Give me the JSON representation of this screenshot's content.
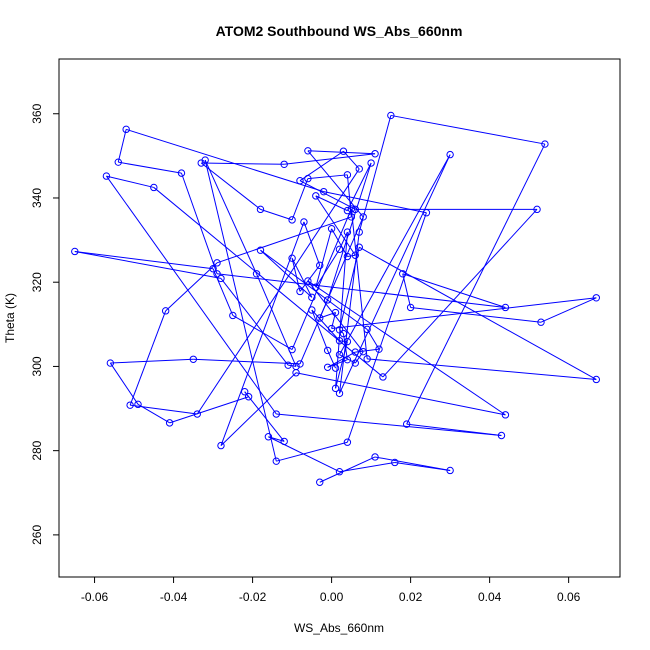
{
  "chart_data": {
    "type": "line",
    "title": "ATOM2 Southbound WS_Abs_660nm",
    "xlabel": "WS_Abs_660nm",
    "ylabel": "Theta (K)",
    "xlim": [
      -0.069,
      0.073
    ],
    "ylim": [
      250,
      373
    ],
    "x_ticks": [
      -0.06,
      -0.04,
      -0.02,
      0.0,
      0.02,
      0.04,
      0.06
    ],
    "x_tick_labels": [
      "-0.06",
      "-0.04",
      "-0.02",
      "0.00",
      "0.02",
      "0.04",
      "0.06"
    ],
    "y_ticks": [
      260,
      280,
      300,
      320,
      340,
      360
    ],
    "y_tick_labels": [
      "260",
      "280",
      "300",
      "320",
      "340",
      "360"
    ],
    "grid": false,
    "legend": "none",
    "marker": "open-circle",
    "series": [
      {
        "color": "#0000ff",
        "x": [
          -0.003,
          0.011,
          0.03,
          0.016,
          0.002,
          -0.016,
          -0.012,
          -0.022,
          -0.021,
          -0.041,
          -0.049,
          -0.056,
          -0.035,
          -0.008,
          0.008,
          -0.006,
          0.011,
          -0.012,
          -0.033,
          -0.018,
          -0.01,
          -0.006,
          0.004,
          0.005,
          -0.029,
          -0.042,
          -0.051,
          -0.034,
          0.007,
          0.003,
          -0.008,
          0.006,
          0.052,
          0.013,
          -0.045,
          -0.057,
          -0.014,
          0.043,
          0.019,
          0.054,
          0.015,
          0.007,
          0.002,
          0.03,
          0.002,
          0.006,
          0.008,
          -0.006,
          0.044,
          -0.009,
          -0.028,
          -0.007,
          -0.003,
          -0.008,
          -0.01,
          -0.005,
          -0.018,
          0.009,
          0.012,
          0.006,
          -0.001,
          0.004,
          0.003,
          0.002,
          0.007,
          0.067,
          0.009,
          0.005,
          -0.01,
          -0.025,
          -0.03,
          -0.065,
          -0.028,
          -0.011,
          -0.009,
          -0.019,
          -0.032,
          -0.014,
          0.004,
          0.024,
          -0.002,
          -0.052,
          -0.054,
          -0.038,
          -0.029,
          0.044,
          0.018,
          0.02,
          0.053,
          0.067,
          0.0,
          0.001,
          -0.003,
          -0.001,
          0.01,
          0.004,
          -0.004,
          0.006,
          0.004,
          0.0,
          -0.004,
          0.002,
          0.004,
          0.001,
          0.004,
          0.002,
          -0.005,
          -0.001,
          0.001
        ],
        "y": [
          272.5,
          278.5,
          275.3,
          277.2,
          275.0,
          283.3,
          282.2,
          294.0,
          292.8,
          286.6,
          291.0,
          300.8,
          301.7,
          300.6,
          335.5,
          351.2,
          350.5,
          348.0,
          348.3,
          337.3,
          334.8,
          344.6,
          345.5,
          335.5,
          324.6,
          313.2,
          290.8,
          288.7,
          346.9,
          351.1,
          344.1,
          337.3,
          337.3,
          297.5,
          342.5,
          345.2,
          288.7,
          283.6,
          286.3,
          352.8,
          359.6,
          331.9,
          293.6,
          350.3,
          302.8,
          300.8,
          303.5,
          320.3,
          288.5,
          298.5,
          281.2,
          334.3,
          324.0,
          317.8,
          325.7,
          316.4,
          327.6,
          308.8,
          304.1,
          303.4,
          299.8,
          301.6,
          307.8,
          308.7,
          328.3,
          296.9,
          301.8,
          337.4,
          304.0,
          312.1,
          323.2,
          327.3,
          320.9,
          300.3,
          300.0,
          322.0,
          349.0,
          277.5,
          282.0,
          336.5,
          341.5,
          356.3,
          348.5,
          345.9,
          322.0,
          314.0,
          322.0,
          314.0,
          310.5,
          316.3,
          309.0,
          312.8,
          311.5,
          315.8,
          348.3,
          337.0,
          340.5,
          326.4,
          326.1,
          332.7,
          318.8,
          327.8,
          331.9,
          294.8,
          305.9,
          306.1,
          313.4,
          303.8,
          299.6
        ]
      }
    ]
  }
}
